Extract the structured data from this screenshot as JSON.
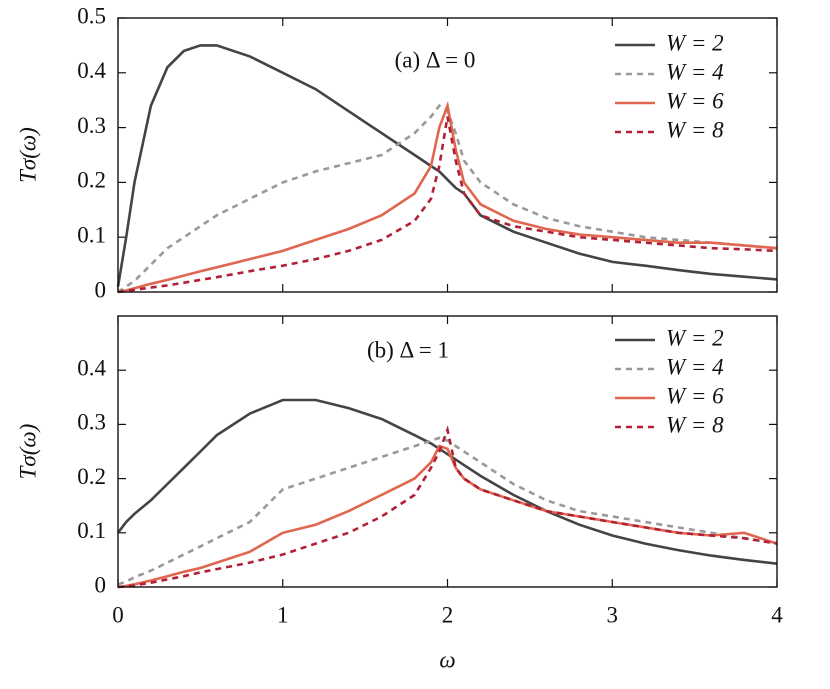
{
  "chart_data": [
    {
      "type": "line",
      "annotation": "(a) Δ = 0",
      "ylabel": "Tσ(ω)",
      "x": [
        0,
        0.05,
        0.1,
        0.2,
        0.3,
        0.4,
        0.5,
        0.6,
        0.8,
        1.0,
        1.2,
        1.4,
        1.6,
        1.8,
        1.9,
        1.95,
        2.0,
        2.05,
        2.1,
        2.2,
        2.4,
        2.6,
        2.8,
        3.0,
        3.2,
        3.4,
        3.6,
        3.8,
        4.0
      ],
      "xlim": [
        0,
        4
      ],
      "xticks": [
        0,
        1,
        2,
        3,
        4
      ],
      "ylim": [
        0,
        0.5
      ],
      "yticks": [
        0,
        0.1,
        0.2,
        0.3,
        0.4,
        0.5
      ],
      "legend": "upper right",
      "series": [
        {
          "name": "W = 2",
          "color": "#444444",
          "style": "solid",
          "values": [
            0.01,
            0.1,
            0.2,
            0.34,
            0.41,
            0.44,
            0.45,
            0.45,
            0.43,
            0.4,
            0.37,
            0.33,
            0.29,
            0.25,
            0.23,
            0.22,
            0.205,
            0.19,
            0.18,
            0.14,
            0.11,
            0.09,
            0.07,
            0.055,
            0.048,
            0.04,
            0.033,
            0.028,
            0.023
          ]
        },
        {
          "name": "W = 4",
          "color": "#999999",
          "style": "dashed",
          "values": [
            0,
            0.01,
            0.02,
            0.05,
            0.08,
            0.1,
            0.12,
            0.14,
            0.17,
            0.2,
            0.22,
            0.235,
            0.25,
            0.29,
            0.32,
            0.34,
            0.33,
            0.29,
            0.24,
            0.2,
            0.16,
            0.135,
            0.12,
            0.11,
            0.1,
            0.095,
            0.09,
            0.085,
            0.08
          ]
        },
        {
          "name": "W = 6",
          "color": "#e06650",
          "style": "solid",
          "values": [
            0,
            0.003,
            0.007,
            0.015,
            0.022,
            0.03,
            0.038,
            0.045,
            0.06,
            0.075,
            0.095,
            0.115,
            0.14,
            0.18,
            0.23,
            0.3,
            0.34,
            0.26,
            0.2,
            0.16,
            0.13,
            0.115,
            0.105,
            0.1,
            0.095,
            0.09,
            0.09,
            0.085,
            0.08
          ]
        },
        {
          "name": "W = 8",
          "color": "#b22035",
          "style": "dashed",
          "values": [
            0,
            0.002,
            0.004,
            0.008,
            0.012,
            0.017,
            0.022,
            0.027,
            0.038,
            0.048,
            0.06,
            0.075,
            0.095,
            0.13,
            0.17,
            0.23,
            0.32,
            0.24,
            0.18,
            0.14,
            0.12,
            0.11,
            0.1,
            0.095,
            0.09,
            0.085,
            0.08,
            0.078,
            0.075
          ]
        }
      ]
    },
    {
      "type": "line",
      "annotation": "(b) Δ = 1",
      "ylabel": "Tσ(ω)",
      "xlabel": "ω",
      "x": [
        0,
        0.05,
        0.1,
        0.2,
        0.3,
        0.4,
        0.5,
        0.6,
        0.8,
        1.0,
        1.2,
        1.4,
        1.6,
        1.8,
        1.9,
        1.95,
        2.0,
        2.05,
        2.1,
        2.2,
        2.4,
        2.6,
        2.8,
        3.0,
        3.2,
        3.4,
        3.6,
        3.8,
        4.0
      ],
      "xlim": [
        0,
        4
      ],
      "xticks": [
        0,
        1,
        2,
        3,
        4
      ],
      "ylim": [
        0,
        0.5
      ],
      "yticks": [
        0,
        0.1,
        0.2,
        0.3,
        0.4
      ],
      "legend": "upper right",
      "series": [
        {
          "name": "W = 2",
          "color": "#444444",
          "style": "solid",
          "values": [
            0.1,
            0.12,
            0.135,
            0.16,
            0.19,
            0.22,
            0.25,
            0.28,
            0.32,
            0.345,
            0.345,
            0.33,
            0.31,
            0.28,
            0.265,
            0.255,
            0.245,
            0.235,
            0.225,
            0.205,
            0.17,
            0.14,
            0.115,
            0.095,
            0.08,
            0.068,
            0.058,
            0.05,
            0.043
          ]
        },
        {
          "name": "W = 4",
          "color": "#999999",
          "style": "dashed",
          "values": [
            0.005,
            0.01,
            0.018,
            0.03,
            0.045,
            0.06,
            0.075,
            0.09,
            0.12,
            0.18,
            0.2,
            0.22,
            0.24,
            0.26,
            0.27,
            0.275,
            0.27,
            0.26,
            0.25,
            0.23,
            0.19,
            0.16,
            0.14,
            0.13,
            0.12,
            0.11,
            0.1,
            0.09,
            0.08
          ]
        },
        {
          "name": "W = 6",
          "color": "#e06650",
          "style": "solid",
          "values": [
            0,
            0.002,
            0.005,
            0.012,
            0.02,
            0.028,
            0.035,
            0.045,
            0.065,
            0.1,
            0.115,
            0.14,
            0.17,
            0.2,
            0.23,
            0.26,
            0.255,
            0.22,
            0.2,
            0.18,
            0.16,
            0.14,
            0.13,
            0.12,
            0.11,
            0.1,
            0.095,
            0.1,
            0.08
          ]
        },
        {
          "name": "W = 8",
          "color": "#b22035",
          "style": "dashed",
          "values": [
            0,
            0.001,
            0.003,
            0.008,
            0.014,
            0.02,
            0.027,
            0.033,
            0.045,
            0.06,
            0.08,
            0.1,
            0.13,
            0.17,
            0.22,
            0.25,
            0.29,
            0.22,
            0.2,
            0.18,
            0.16,
            0.14,
            0.13,
            0.12,
            0.11,
            0.1,
            0.095,
            0.09,
            0.08
          ]
        }
      ]
    }
  ]
}
